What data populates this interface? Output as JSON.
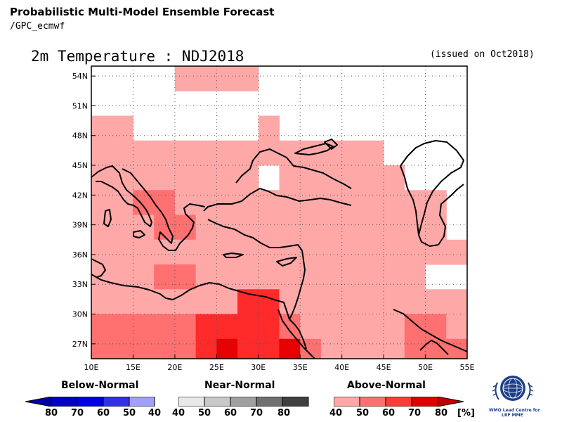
{
  "header": {
    "title": "Probabilistic Multi-Model Ensemble Forecast",
    "subtitle": "/GPC_ecmwf"
  },
  "map": {
    "title": "2m Temperature : NDJ2018",
    "issued": "(issued on Oct2018)",
    "lon_labels": [
      "10E",
      "15E",
      "20E",
      "25E",
      "30E",
      "35E",
      "40E",
      "45E",
      "50E",
      "55E"
    ],
    "lat_labels": [
      "54N",
      "51N",
      "48N",
      "45N",
      "42N",
      "39N",
      "36N",
      "33N",
      "30N",
      "27N"
    ]
  },
  "legend": {
    "below": {
      "title": "Below-Normal",
      "labels": [
        "80",
        "70",
        "60",
        "50",
        "40"
      ],
      "colors": [
        "#0000c8",
        "#0000e6",
        "#2a2ae6",
        "#5050ee",
        "#a0a0f8"
      ]
    },
    "near": {
      "title": "Near-Normal",
      "labels": [
        "40",
        "50",
        "60",
        "70",
        "80"
      ],
      "colors": [
        "#e8e8e8",
        "#c8c8c8",
        "#a0a0a0",
        "#707070",
        "#404040"
      ]
    },
    "above": {
      "title": "Above-Normal",
      "labels": [
        "40",
        "50",
        "60",
        "70",
        "80"
      ],
      "colors": [
        "#ffa8a8",
        "#ff7070",
        "#ff3a3a",
        "#e00000",
        "#c00000"
      ],
      "unit": "[%]"
    }
  },
  "logo": {
    "line1": "WMO Lead Centre for",
    "line2": "LRF MME"
  },
  "forecast_grid": {
    "lon_start": 10,
    "lat_top": 55,
    "cell_deg": 2.5,
    "ncols": 18,
    "nrows": 12,
    "levels": {
      "0": "#ffffff",
      "1": "#ffa8a8",
      "2": "#ff7070",
      "3": "#ff2a2a",
      "4": "#e60000",
      "5": "#b40000"
    },
    "rows": [
      "000011110000000000",
      "000000000000000000",
      "110000001000000000",
      "111111111111110000",
      "111111110111111000",
      "112211111111111110",
      "111221111111111110",
      "111111111111111111",
      "111221111111111100",
      "111111133111111111",
      "222223333211111221",
      "222223433421111222"
    ]
  }
}
